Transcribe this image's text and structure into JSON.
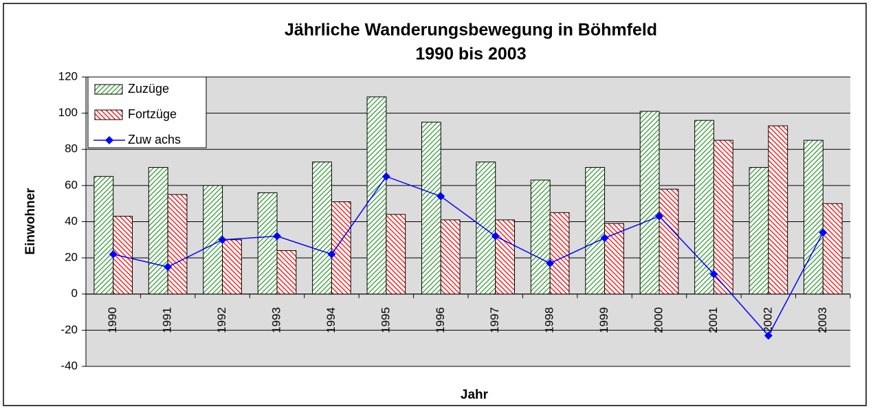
{
  "chart_data": {
    "type": "bar",
    "title": "Jährliche Wanderungsbewegung in Böhmfeld",
    "subtitle": "1990 bis 2003",
    "x_label": "Jahr",
    "y_label": "Einwohner",
    "categories": [
      "1990",
      "1991",
      "1992",
      "1993",
      "1994",
      "1995",
      "1996",
      "1997",
      "1998",
      "1999",
      "2000",
      "2001",
      "2002",
      "2003"
    ],
    "series": [
      {
        "name": "Zuzüge",
        "color": "#339933",
        "type": "bar",
        "values": [
          65,
          70,
          60,
          56,
          73,
          109,
          95,
          73,
          63,
          70,
          101,
          96,
          70,
          85
        ]
      },
      {
        "name": "Fortzüge",
        "color": "#ff0000",
        "type": "bar",
        "values": [
          43,
          55,
          30,
          24,
          51,
          44,
          41,
          41,
          45,
          39,
          58,
          85,
          93,
          50
        ]
      },
      {
        "name": "Zuw achs",
        "color": "#0000ff",
        "type": "line",
        "values": [
          22,
          15,
          30,
          32,
          22,
          65,
          54,
          32,
          17,
          31,
          43,
          11,
          -23,
          34
        ]
      }
    ],
    "ylim": [
      -40,
      120
    ],
    "yticks": [
      -40,
      -20,
      0,
      20,
      40,
      60,
      80,
      100,
      120
    ],
    "grid": true,
    "legend": "top-left"
  }
}
